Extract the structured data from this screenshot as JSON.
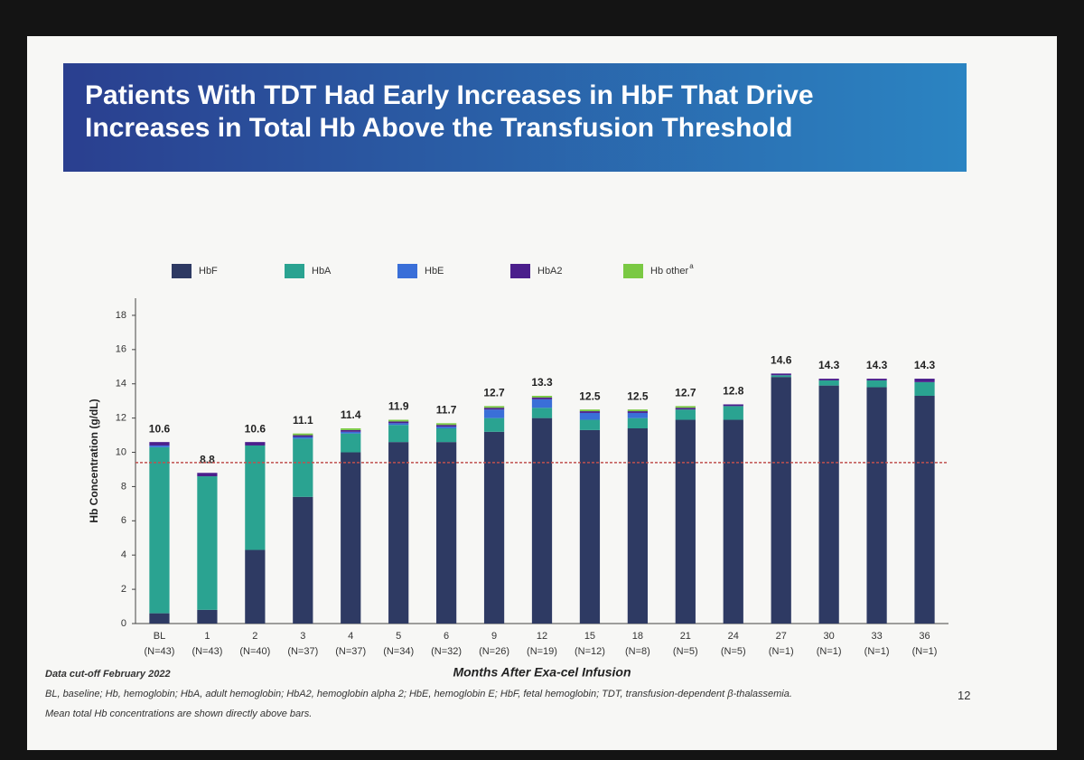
{
  "chart_data": {
    "type": "stacked-bar",
    "title": "Patients With TDT Had Early Increases in HbF That Drive Increases in Total Hb Above the Transfusion Threshold",
    "y_label": "Hb Concentration (g/dL)",
    "x_label": "Months After Exa-cel Infusion",
    "categories": [
      "BL",
      "1",
      "2",
      "3",
      "4",
      "5",
      "6",
      "9",
      "12",
      "15",
      "18",
      "21",
      "24",
      "27",
      "30",
      "33",
      "36"
    ],
    "n_labels": [
      "(N=43)",
      "(N=43)",
      "(N=40)",
      "(N=37)",
      "(N=37)",
      "(N=34)",
      "(N=32)",
      "(N=26)",
      "(N=19)",
      "(N=12)",
      "(N=8)",
      "(N=5)",
      "(N=5)",
      "(N=1)",
      "(N=1)",
      "(N=1)",
      "(N=1)"
    ],
    "totals": [
      10.6,
      8.8,
      10.6,
      11.1,
      11.4,
      11.9,
      11.7,
      12.7,
      13.3,
      12.5,
      12.5,
      12.7,
      12.8,
      14.6,
      14.3,
      14.3,
      14.3
    ],
    "series": [
      {
        "name": "HbF",
        "color": "#2e3a63",
        "values": [
          0.6,
          0.8,
          4.3,
          7.4,
          10.0,
          10.6,
          10.6,
          11.2,
          12.0,
          11.3,
          11.4,
          11.9,
          11.9,
          14.4,
          13.9,
          13.8,
          13.3
        ]
      },
      {
        "name": "HbA",
        "color": "#2aa391",
        "values": [
          9.7,
          7.8,
          6.1,
          3.4,
          1.1,
          1.0,
          0.8,
          0.8,
          0.6,
          0.6,
          0.6,
          0.6,
          0.8,
          0.1,
          0.3,
          0.4,
          0.8
        ]
      },
      {
        "name": "HbE",
        "color": "#3a6fd8",
        "values": [
          0.1,
          0,
          0,
          0.1,
          0.1,
          0.1,
          0.1,
          0.5,
          0.5,
          0.4,
          0.3,
          0,
          0,
          0,
          0,
          0,
          0
        ]
      },
      {
        "name": "HbA2",
        "color": "#4b1f8c",
        "values": [
          0.2,
          0.2,
          0.2,
          0.1,
          0.1,
          0.1,
          0.1,
          0.1,
          0.1,
          0.1,
          0.1,
          0.1,
          0.1,
          0.1,
          0.1,
          0.1,
          0.2
        ]
      },
      {
        "name": "Hb other",
        "color": "#7ac943",
        "values": [
          0,
          0,
          0,
          0.1,
          0.1,
          0.1,
          0.1,
          0.1,
          0.1,
          0.1,
          0.1,
          0.1,
          0,
          0,
          0,
          0,
          0
        ]
      }
    ],
    "legend_superscript": "a",
    "threshold": 9.4,
    "threshold_color": "#c0504d",
    "ylim": [
      0,
      19
    ],
    "yticks": [
      0,
      2,
      4,
      6,
      8,
      10,
      12,
      14,
      16,
      18
    ]
  },
  "footnotes": {
    "cutoff": "Data cut-off February 2022",
    "abbreviations": "BL, baseline; Hb, hemoglobin; HbA, adult hemoglobin; HbA2, hemoglobin alpha 2; HbE, hemoglobin E; HbF, fetal hemoglobin; TDT, transfusion-dependent β-thalassemia.",
    "note": "Mean total Hb concentrations are shown directly above bars.",
    "page_number": "12"
  }
}
